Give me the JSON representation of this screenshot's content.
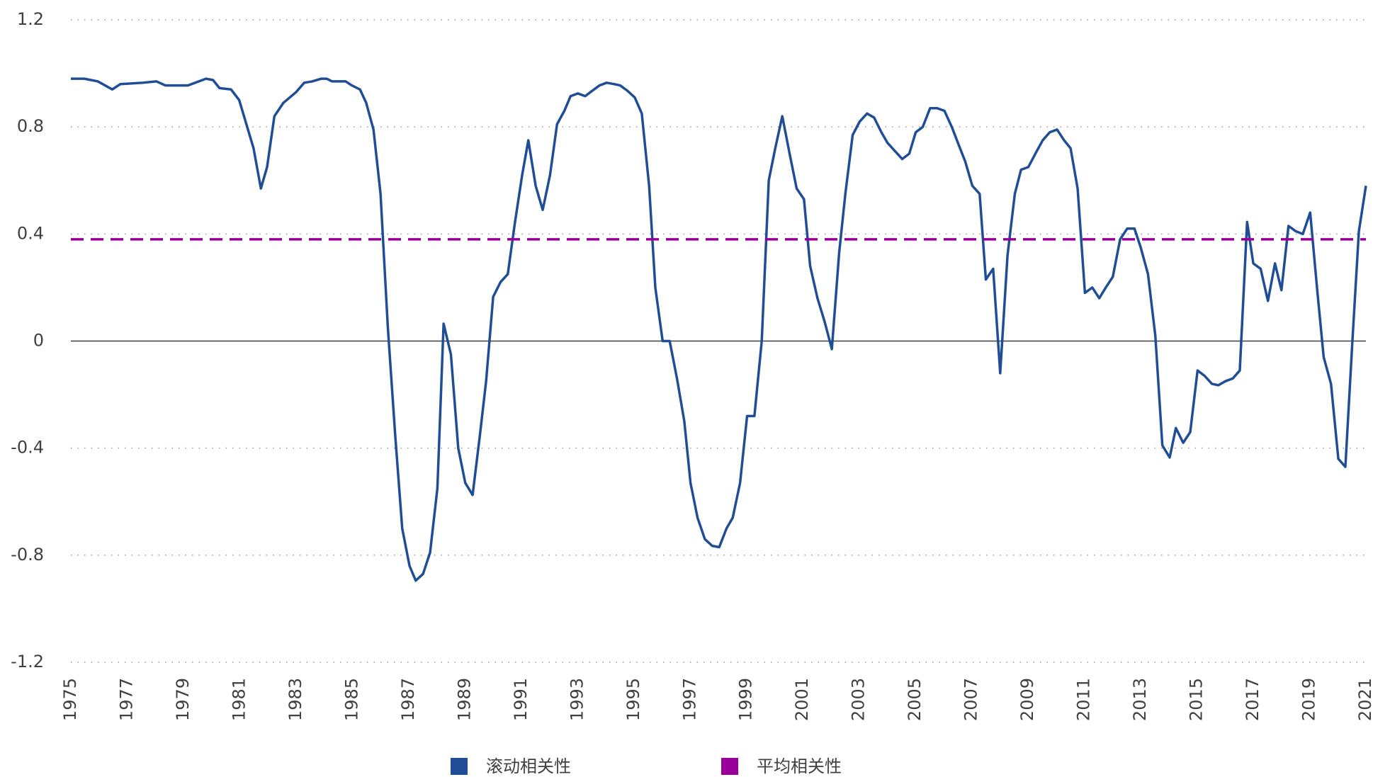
{
  "chart_data": {
    "type": "line",
    "xlim": [
      1975,
      2021
    ],
    "xticks": [
      1975,
      1977,
      1979,
      1981,
      1983,
      1985,
      1987,
      1989,
      1991,
      1993,
      1995,
      1997,
      1999,
      2001,
      2003,
      2005,
      2007,
      2009,
      2011,
      2013,
      2015,
      2017,
      2019,
      2021
    ],
    "ylim": [
      -1.2,
      1.2
    ],
    "yticks": [
      -1.2,
      -0.8,
      -0.4,
      0,
      0.4,
      0.8,
      1.2
    ],
    "grid": true,
    "legend": "bottom",
    "series": [
      {
        "name": "滚动相关性",
        "color": "#1f4e96",
        "style": "solid",
        "x": [
          1975,
          1975.48,
          1975.96,
          1976.47,
          1976.76,
          1977.56,
          1978.04,
          1978.36,
          1979.16,
          1979.8,
          1980.05,
          1980.28,
          1980.69,
          1980.98,
          1981.49,
          1981.75,
          1981.97,
          1982.23,
          1982.55,
          1983,
          1983.29,
          1983.57,
          1983.89,
          1984.09,
          1984.28,
          1984.76,
          1984.98,
          1985.27,
          1985.49,
          1985.75,
          1986,
          1986.26,
          1986.52,
          1986.77,
          1987.03,
          1987.25,
          1987.51,
          1987.76,
          1988.02,
          1988.24,
          1988.5,
          1988.76,
          1989.01,
          1989.27,
          1989.52,
          1989.75,
          1990,
          1990.26,
          1990.52,
          1990.77,
          1991.03,
          1991.25,
          1991.51,
          1991.76,
          1992.02,
          1992.27,
          1992.53,
          1992.75,
          1993.01,
          1993.27,
          1993.52,
          1993.78,
          1994.03,
          1994.29,
          1994.51,
          1994.77,
          1995.03,
          1995.28,
          1995.54,
          1995.76,
          1996.02,
          1996.27,
          1996.53,
          1996.79,
          1997.01,
          1997.26,
          1997.52,
          1997.78,
          1998.03,
          1998.29,
          1998.51,
          1998.77,
          1999.02,
          1999.28,
          1999.54,
          1999.79,
          2000.02,
          2000.27,
          2000.53,
          2000.78,
          2001.04,
          2001.26,
          2001.52,
          2001.78,
          2002.03,
          2002.29,
          2002.51,
          2002.77,
          2003.02,
          2003.28,
          2003.53,
          2003.79,
          2004.01,
          2004.27,
          2004.53,
          2004.78,
          2005.01,
          2005.26,
          2005.52,
          2005.77,
          2006.03,
          2006.29,
          2006.51,
          2006.77,
          2007.02,
          2007.28,
          2007.5,
          2007.76,
          2008.01,
          2008.27,
          2008.53,
          2008.75,
          2009.01,
          2009.26,
          2009.52,
          2009.77,
          2010.03,
          2010.28,
          2010.51,
          2010.76,
          2011.02,
          2011.28,
          2011.53,
          2011.76,
          2012.01,
          2012.27,
          2012.52,
          2012.78,
          2013,
          2013.26,
          2013.52,
          2013.77,
          2014.03,
          2014.25,
          2014.51,
          2014.76,
          2015.02,
          2015.27,
          2015.53,
          2015.76,
          2016.01,
          2016.27,
          2016.52,
          2016.78,
          2017,
          2017.26,
          2017.52,
          2017.77,
          2018,
          2018.25,
          2018.51,
          2018.76,
          2019.02,
          2019.28,
          2019.5,
          2019.76,
          2020.02,
          2020.27,
          2020.52,
          2020.75,
          2021
        ],
        "values": [
          0.98,
          0.98,
          0.97,
          0.94,
          0.96,
          0.965,
          0.97,
          0.955,
          0.955,
          0.98,
          0.975,
          0.945,
          0.94,
          0.9,
          0.72,
          0.57,
          0.65,
          0.84,
          0.89,
          0.93,
          0.965,
          0.97,
          0.98,
          0.98,
          0.97,
          0.97,
          0.955,
          0.94,
          0.89,
          0.79,
          0.55,
          0.05,
          -0.35,
          -0.7,
          -0.84,
          -0.895,
          -0.87,
          -0.79,
          -0.55,
          0.065,
          -0.05,
          -0.4,
          -0.53,
          -0.575,
          -0.36,
          -0.15,
          0.165,
          0.22,
          0.25,
          0.44,
          0.62,
          0.75,
          0.58,
          0.49,
          0.62,
          0.81,
          0.86,
          0.915,
          0.925,
          0.915,
          0.935,
          0.955,
          0.965,
          0.96,
          0.955,
          0.935,
          0.91,
          0.85,
          0.58,
          0.2,
          0,
          0,
          -0.14,
          -0.3,
          -0.53,
          -0.66,
          -0.74,
          -0.765,
          -0.77,
          -0.7,
          -0.66,
          -0.53,
          -0.28,
          -0.28,
          0,
          0.6,
          0.72,
          0.84,
          0.7,
          0.57,
          0.53,
          0.28,
          0.16,
          0.07,
          -0.03,
          0.33,
          0.55,
          0.77,
          0.82,
          0.85,
          0.835,
          0.78,
          0.74,
          0.71,
          0.68,
          0.7,
          0.78,
          0.8,
          0.87,
          0.87,
          0.86,
          0.8,
          0.74,
          0.67,
          0.58,
          0.55,
          0.23,
          0.27,
          -0.12,
          0.32,
          0.55,
          0.64,
          0.65,
          0.7,
          0.75,
          0.78,
          0.79,
          0.75,
          0.72,
          0.57,
          0.18,
          0.2,
          0.16,
          0.2,
          0.24,
          0.38,
          0.42,
          0.42,
          0.35,
          0.25,
          0.02,
          -0.39,
          -0.435,
          -0.325,
          -0.38,
          -0.34,
          -0.11,
          -0.13,
          -0.16,
          -0.165,
          -0.15,
          -0.14,
          -0.11,
          0.445,
          0.29,
          0.27,
          0.15,
          0.29,
          0.19,
          0.43,
          0.41,
          0.4,
          0.48,
          0.18,
          -0.06,
          -0.16,
          -0.44,
          -0.47,
          0,
          0.41,
          0.58
        ]
      },
      {
        "name": "平均相关性",
        "color": "#990099",
        "style": "dashed",
        "x": [
          1975,
          2021
        ],
        "values": [
          0.38,
          0.38
        ]
      }
    ]
  }
}
